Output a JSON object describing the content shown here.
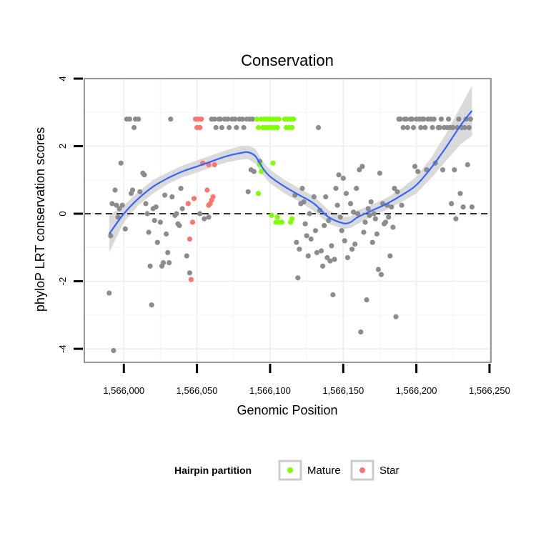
{
  "chart_data": {
    "type": "scatter",
    "title": "Conservation",
    "xlabel": "Genomic Position",
    "ylabel": "phyloP LRT conservation scores",
    "xlim": [
      1565973,
      1566251
    ],
    "ylim": [
      -4.4,
      4
    ],
    "x_ticks": [
      1566000,
      1566050,
      1566100,
      1566150,
      1566200,
      1566250
    ],
    "x_tick_labels": [
      "1,566,000",
      "1,566,050",
      "1,566,100",
      "1,566,150",
      "1,566,200",
      "1,566,250"
    ],
    "y_ticks": [
      -4,
      -2,
      0,
      2,
      4
    ],
    "y_tick_labels": [
      "-4",
      "-2",
      "0",
      "2",
      "4"
    ],
    "reference_line": {
      "y": 0,
      "style": "dashed"
    },
    "legend": {
      "title": "Hairpin partition",
      "position": "bottom",
      "entries": [
        {
          "label": "Mature",
          "color": "#7fff00"
        },
        {
          "label": "Star",
          "color": "#f8766d"
        }
      ]
    },
    "colors": {
      "other": "#8c8c8c",
      "Mature": "#7fff00",
      "Star": "#f8766d",
      "smooth": "#3366ff",
      "ribbon": "#d3d3d3"
    },
    "series": [
      {
        "name": "Other",
        "points": [
          [
            1565990,
            -2.35
          ],
          [
            1565991,
            -0.65
          ],
          [
            1565992,
            0.3
          ],
          [
            1565993,
            -4.05
          ],
          [
            1565994,
            0.7
          ],
          [
            1565995,
            0.25
          ],
          [
            1565996,
            -0.1
          ],
          [
            1565997,
            0.15
          ],
          [
            1565998,
            1.5
          ],
          [
            1565999,
            0.25
          ],
          [
            1566001,
            -0.45
          ],
          [
            1566002,
            2.8
          ],
          [
            1566004,
            2.8
          ],
          [
            1566005,
            0.6
          ],
          [
            1566006,
            0.7
          ],
          [
            1566007,
            2.55
          ],
          [
            1566008,
            2.8
          ],
          [
            1566010,
            2.8
          ],
          [
            1566011,
            0.65
          ],
          [
            1566013,
            1.2
          ],
          [
            1566014,
            1.15
          ],
          [
            1566015,
            0.3
          ],
          [
            1566016,
            0.0
          ],
          [
            1566017,
            -0.55
          ],
          [
            1566018,
            -1.55
          ],
          [
            1566019,
            -2.7
          ],
          [
            1566020,
            0.15
          ],
          [
            1566021,
            -0.2
          ],
          [
            1566022,
            0.2
          ],
          [
            1566023,
            -0.85
          ],
          [
            1566025,
            -0.25
          ],
          [
            1566026,
            -1.55
          ],
          [
            1566027,
            -1.45
          ],
          [
            1566028,
            0.55
          ],
          [
            1566029,
            -0.6
          ],
          [
            1566030,
            -1.15
          ],
          [
            1566031,
            -1.45
          ],
          [
            1566032,
            2.8
          ],
          [
            1566033,
            0.5
          ],
          [
            1566035,
            -0.05
          ],
          [
            1566036,
            0.0
          ],
          [
            1566037,
            -0.3
          ],
          [
            1566038,
            -0.35
          ],
          [
            1566039,
            0.75
          ],
          [
            1566040,
            0.15
          ],
          [
            1566043,
            -1.25
          ],
          [
            1566045,
            -1.75
          ],
          [
            1566052,
            0.0
          ],
          [
            1566055,
            -0.15
          ],
          [
            1566058,
            -0.1
          ],
          [
            1566060,
            2.8
          ],
          [
            1566062,
            2.8
          ],
          [
            1566063,
            2.55
          ],
          [
            1566065,
            2.8
          ],
          [
            1566066,
            2.8
          ],
          [
            1566067,
            2.55
          ],
          [
            1566069,
            2.8
          ],
          [
            1566071,
            2.8
          ],
          [
            1566072,
            2.55
          ],
          [
            1566074,
            2.8
          ],
          [
            1566076,
            2.8
          ],
          [
            1566077,
            2.55
          ],
          [
            1566079,
            2.8
          ],
          [
            1566081,
            2.8
          ],
          [
            1566082,
            2.55
          ],
          [
            1566084,
            2.8
          ],
          [
            1566085,
            0.65
          ],
          [
            1566086,
            2.8
          ],
          [
            1566087,
            1.3
          ],
          [
            1566088,
            2.8
          ],
          [
            1566089,
            1.25
          ],
          [
            1566093,
            1.55
          ],
          [
            1566117,
            0.55
          ],
          [
            1566118,
            -0.85
          ],
          [
            1566119,
            -1.9
          ],
          [
            1566120,
            -1.05
          ],
          [
            1566121,
            0.3
          ],
          [
            1566122,
            0.75
          ],
          [
            1566123,
            0.35
          ],
          [
            1566124,
            -0.3
          ],
          [
            1566125,
            -0.65
          ],
          [
            1566126,
            -1.25
          ],
          [
            1566127,
            0.0
          ],
          [
            1566128,
            -0.75
          ],
          [
            1566130,
            0.5
          ],
          [
            1566131,
            -0.5
          ],
          [
            1566132,
            -1.15
          ],
          [
            1566133,
            2.55
          ],
          [
            1566134,
            0.1
          ],
          [
            1566135,
            -1.1
          ],
          [
            1566136,
            -1.55
          ],
          [
            1566137,
            -0.35
          ],
          [
            1566138,
            0.5
          ],
          [
            1566139,
            -1.3
          ],
          [
            1566140,
            -0.2
          ],
          [
            1566141,
            -1.4
          ],
          [
            1566142,
            -0.95
          ],
          [
            1566143,
            -2.4
          ],
          [
            1566144,
            -1.35
          ],
          [
            1566145,
            0.75
          ],
          [
            1566146,
            0.25
          ],
          [
            1566147,
            1.15
          ],
          [
            1566148,
            -0.1
          ],
          [
            1566149,
            -0.5
          ],
          [
            1566150,
            1.05
          ],
          [
            1566151,
            -0.8
          ],
          [
            1566152,
            0.6
          ],
          [
            1566153,
            -1.3
          ],
          [
            1566155,
            0.3
          ],
          [
            1566156,
            -1.05
          ],
          [
            1566157,
            0.05
          ],
          [
            1566158,
            -0.9
          ],
          [
            1566159,
            0.75
          ],
          [
            1566160,
            0.0
          ],
          [
            1566161,
            1.3
          ],
          [
            1566162,
            -3.5
          ],
          [
            1566163,
            1.4
          ],
          [
            1566164,
            -0.55
          ],
          [
            1566165,
            -0.25
          ],
          [
            1566166,
            -2.55
          ],
          [
            1566167,
            0.15
          ],
          [
            1566168,
            -0.05
          ],
          [
            1566169,
            0.35
          ],
          [
            1566170,
            -0.85
          ],
          [
            1566171,
            0.0
          ],
          [
            1566172,
            -0.15
          ],
          [
            1566173,
            -0.6
          ],
          [
            1566174,
            -1.65
          ],
          [
            1566175,
            1.2
          ],
          [
            1566176,
            -1.8
          ],
          [
            1566177,
            0.3
          ],
          [
            1566178,
            -0.3
          ],
          [
            1566179,
            -0.25
          ],
          [
            1566180,
            0.25
          ],
          [
            1566181,
            -0.1
          ],
          [
            1566182,
            -1.25
          ],
          [
            1566183,
            0.2
          ],
          [
            1566184,
            -0.4
          ],
          [
            1566185,
            0.75
          ],
          [
            1566186,
            -3.05
          ],
          [
            1566187,
            0.65
          ],
          [
            1566188,
            2.8
          ],
          [
            1566189,
            2.8
          ],
          [
            1566190,
            0.25
          ],
          [
            1566191,
            2.55
          ],
          [
            1566192,
            2.8
          ],
          [
            1566193,
            2.8
          ],
          [
            1566194,
            2.55
          ],
          [
            1566196,
            2.8
          ],
          [
            1566197,
            2.8
          ],
          [
            1566198,
            2.55
          ],
          [
            1566199,
            1.4
          ],
          [
            1566200,
            2.8
          ],
          [
            1566201,
            1.25
          ],
          [
            1566202,
            2.8
          ],
          [
            1566203,
            2.55
          ],
          [
            1566204,
            2.8
          ],
          [
            1566205,
            2.8
          ],
          [
            1566206,
            2.55
          ],
          [
            1566207,
            1.3
          ],
          [
            1566208,
            2.8
          ],
          [
            1566210,
            2.8
          ],
          [
            1566211,
            2.55
          ],
          [
            1566212,
            2.8
          ],
          [
            1566213,
            1.5
          ],
          [
            1566215,
            2.55
          ],
          [
            1566216,
            2.55
          ],
          [
            1566217,
            2.8
          ],
          [
            1566218,
            1.3
          ],
          [
            1566219,
            2.55
          ],
          [
            1566221,
            2.55
          ],
          [
            1566222,
            2.8
          ],
          [
            1566223,
            2.55
          ],
          [
            1566224,
            0.3
          ],
          [
            1566225,
            2.55
          ],
          [
            1566226,
            1.3
          ],
          [
            1566227,
            -0.15
          ],
          [
            1566228,
            2.55
          ],
          [
            1566229,
            2.8
          ],
          [
            1566230,
            0.6
          ],
          [
            1566231,
            2.55
          ],
          [
            1566232,
            0.2
          ],
          [
            1566233,
            2.55
          ],
          [
            1566234,
            2.8
          ],
          [
            1566235,
            1.45
          ],
          [
            1566236,
            2.55
          ],
          [
            1566237,
            2.8
          ],
          [
            1566238,
            0.2
          ]
        ]
      },
      {
        "name": "Mature",
        "points": [
          [
            1566091,
            2.8
          ],
          [
            1566092,
            2.55
          ],
          [
            1566092,
            0.6
          ],
          [
            1566093,
            1.45
          ],
          [
            1566094,
            2.8
          ],
          [
            1566094,
            1.25
          ],
          [
            1566095,
            2.55
          ],
          [
            1566096,
            2.8
          ],
          [
            1566097,
            2.55
          ],
          [
            1566098,
            2.8
          ],
          [
            1566099,
            2.55
          ],
          [
            1566100,
            2.8
          ],
          [
            1566101,
            2.55
          ],
          [
            1566101,
            -0.05
          ],
          [
            1566102,
            2.8
          ],
          [
            1566102,
            1.5
          ],
          [
            1566103,
            2.55
          ],
          [
            1566104,
            2.8
          ],
          [
            1566104,
            -0.25
          ],
          [
            1566105,
            2.55
          ],
          [
            1566105,
            -0.1
          ],
          [
            1566106,
            2.8
          ],
          [
            1566106,
            -0.25
          ],
          [
            1566108,
            -0.25
          ],
          [
            1566110,
            2.8
          ],
          [
            1566111,
            2.55
          ],
          [
            1566112,
            2.8
          ],
          [
            1566113,
            2.55
          ],
          [
            1566114,
            2.8
          ],
          [
            1566114,
            -0.25
          ],
          [
            1566115,
            2.55
          ],
          [
            1566115,
            -0.15
          ],
          [
            1566116,
            2.8
          ]
        ]
      },
      {
        "name": "Star",
        "points": [
          [
            1566044,
            0.3
          ],
          [
            1566045,
            -0.75
          ],
          [
            1566046,
            -1.95
          ],
          [
            1566047,
            -0.25
          ],
          [
            1566048,
            0.45
          ],
          [
            1566049,
            2.8
          ],
          [
            1566050,
            2.55
          ],
          [
            1566051,
            2.8
          ],
          [
            1566052,
            2.55
          ],
          [
            1566053,
            2.8
          ],
          [
            1566054,
            1.5
          ],
          [
            1566057,
            0.7
          ],
          [
            1566058,
            0.25
          ],
          [
            1566058,
            1.45
          ],
          [
            1566059,
            0.3
          ],
          [
            1566060,
            0.4
          ],
          [
            1566061,
            0.5
          ],
          [
            1566062,
            1.45
          ]
        ]
      }
    ],
    "smooth": {
      "x": [
        1565990,
        1566000,
        1566010,
        1566020,
        1566030,
        1566040,
        1566050,
        1566060,
        1566070,
        1566080,
        1566085,
        1566090,
        1566095,
        1566100,
        1566110,
        1566120,
        1566130,
        1566140,
        1566150,
        1566155,
        1566160,
        1566170,
        1566180,
        1566190,
        1566200,
        1566210,
        1566220,
        1566230,
        1566238
      ],
      "y": [
        -0.6,
        0.0,
        0.45,
        0.8,
        1.05,
        1.25,
        1.4,
        1.55,
        1.7,
        1.8,
        1.82,
        1.7,
        1.35,
        1.1,
        0.8,
        0.55,
        0.3,
        -0.1,
        -0.28,
        -0.25,
        -0.1,
        0.1,
        0.3,
        0.55,
        0.85,
        1.35,
        1.95,
        2.6,
        3.05
      ],
      "lower": [
        -1.15,
        -0.25,
        0.25,
        0.6,
        0.88,
        1.08,
        1.22,
        1.37,
        1.52,
        1.6,
        1.62,
        1.48,
        1.15,
        0.9,
        0.6,
        0.35,
        0.08,
        -0.3,
        -0.46,
        -0.42,
        -0.3,
        -0.07,
        0.12,
        0.35,
        0.6,
        1.05,
        1.55,
        2.05,
        2.3
      ],
      "upper": [
        -0.05,
        0.25,
        0.65,
        1.0,
        1.22,
        1.42,
        1.58,
        1.73,
        1.88,
        2.0,
        2.02,
        1.92,
        1.55,
        1.3,
        1.0,
        0.75,
        0.52,
        0.1,
        -0.1,
        -0.08,
        0.1,
        0.27,
        0.48,
        0.75,
        1.1,
        1.65,
        2.35,
        3.15,
        3.8
      ]
    }
  }
}
